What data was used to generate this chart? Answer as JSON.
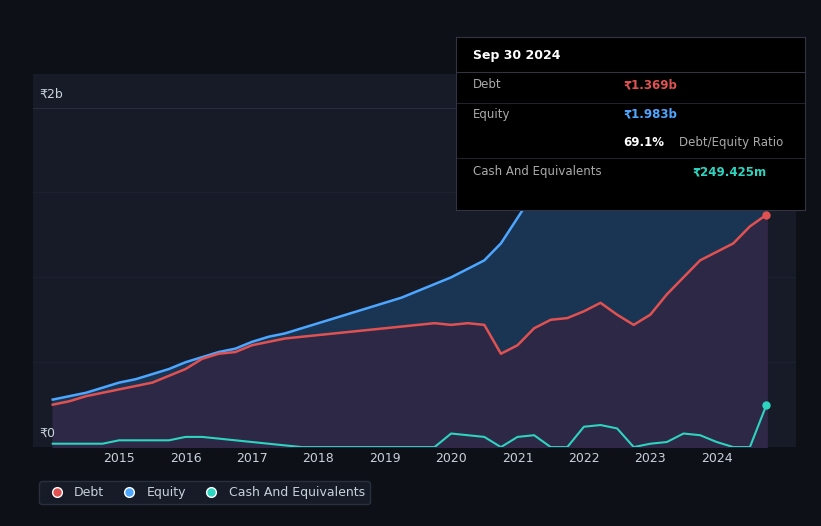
{
  "bg_color": "#0d1117",
  "plot_bg_color": "#161b27",
  "grid_color": "#2a2f3f",
  "text_color": "#c9d1d9",
  "title": "Sep 30 2024",
  "y_label_2b": "₹2b",
  "y_label_0": "₹0",
  "debt_color": "#e05252",
  "equity_color": "#4da6ff",
  "cash_color": "#2dd4bf",
  "equity_fill_color": "#1a3a5c",
  "debt_fill_color": "#3d2040",
  "tooltip_bg": "#000000",
  "tooltip_border": "#333344",
  "years": [
    2014.0,
    2014.25,
    2014.5,
    2014.75,
    2015.0,
    2015.25,
    2015.5,
    2015.75,
    2016.0,
    2016.25,
    2016.5,
    2016.75,
    2017.0,
    2017.25,
    2017.5,
    2017.75,
    2018.0,
    2018.25,
    2018.5,
    2018.75,
    2019.0,
    2019.25,
    2019.5,
    2019.75,
    2020.0,
    2020.25,
    2020.5,
    2020.75,
    2021.0,
    2021.25,
    2021.5,
    2021.75,
    2022.0,
    2022.25,
    2022.5,
    2022.75,
    2023.0,
    2023.25,
    2023.5,
    2023.75,
    2024.0,
    2024.25,
    2024.5,
    2024.75
  ],
  "debt": [
    0.25,
    0.27,
    0.3,
    0.32,
    0.34,
    0.36,
    0.38,
    0.42,
    0.46,
    0.52,
    0.55,
    0.56,
    0.6,
    0.62,
    0.64,
    0.65,
    0.66,
    0.67,
    0.68,
    0.69,
    0.7,
    0.71,
    0.72,
    0.73,
    0.72,
    0.73,
    0.72,
    0.55,
    0.6,
    0.7,
    0.75,
    0.76,
    0.8,
    0.85,
    0.78,
    0.72,
    0.78,
    0.9,
    1.0,
    1.1,
    1.15,
    1.2,
    1.3,
    1.369
  ],
  "equity": [
    0.28,
    0.3,
    0.32,
    0.35,
    0.38,
    0.4,
    0.43,
    0.46,
    0.5,
    0.53,
    0.56,
    0.58,
    0.62,
    0.65,
    0.67,
    0.7,
    0.73,
    0.76,
    0.79,
    0.82,
    0.85,
    0.88,
    0.92,
    0.96,
    1.0,
    1.05,
    1.1,
    1.2,
    1.35,
    1.5,
    1.52,
    1.48,
    1.5,
    1.52,
    1.45,
    1.4,
    1.42,
    1.5,
    1.58,
    1.65,
    1.7,
    1.75,
    1.8,
    1.983
  ],
  "cash": [
    0.02,
    0.02,
    0.02,
    0.02,
    0.04,
    0.04,
    0.04,
    0.04,
    0.06,
    0.06,
    0.05,
    0.04,
    0.03,
    0.02,
    0.01,
    0.0,
    0.0,
    0.0,
    0.0,
    0.0,
    0.0,
    0.0,
    0.0,
    0.0,
    0.08,
    0.07,
    0.06,
    0.0,
    0.06,
    0.07,
    0.0,
    0.0,
    0.12,
    0.13,
    0.11,
    0.0,
    0.02,
    0.03,
    0.08,
    0.07,
    0.03,
    0.0,
    0.0,
    0.2494
  ],
  "ylim": [
    0,
    2.2
  ],
  "xlim": [
    2013.7,
    2025.2
  ],
  "x_ticks": [
    2015,
    2016,
    2017,
    2018,
    2019,
    2020,
    2021,
    2022,
    2023,
    2024
  ],
  "legend_items": [
    "Debt",
    "Equity",
    "Cash And Equivalents"
  ],
  "tooltip_lines": [
    {
      "label": "Sep 30 2024",
      "value": "",
      "label_color": "white",
      "value_color": "white",
      "bold_label": true,
      "separator_after": true
    },
    {
      "label": "Debt",
      "value": "₹1.369b",
      "label_color": "#aaaaaa",
      "value_color": "#e05252",
      "bold_label": false,
      "separator_after": true
    },
    {
      "label": "Equity",
      "value": "₹1.983b",
      "label_color": "#aaaaaa",
      "value_color": "#4da6ff",
      "bold_label": false,
      "separator_after": false
    },
    {
      "label": "",
      "value": "69.1% Debt/Equity Ratio",
      "label_color": "#aaaaaa",
      "value_color": "white",
      "bold_label": false,
      "separator_after": true
    },
    {
      "label": "Cash And Equivalents",
      "value": "₹249.425m",
      "label_color": "#aaaaaa",
      "value_color": "#2dd4bf",
      "bold_label": false,
      "separator_after": false
    }
  ]
}
